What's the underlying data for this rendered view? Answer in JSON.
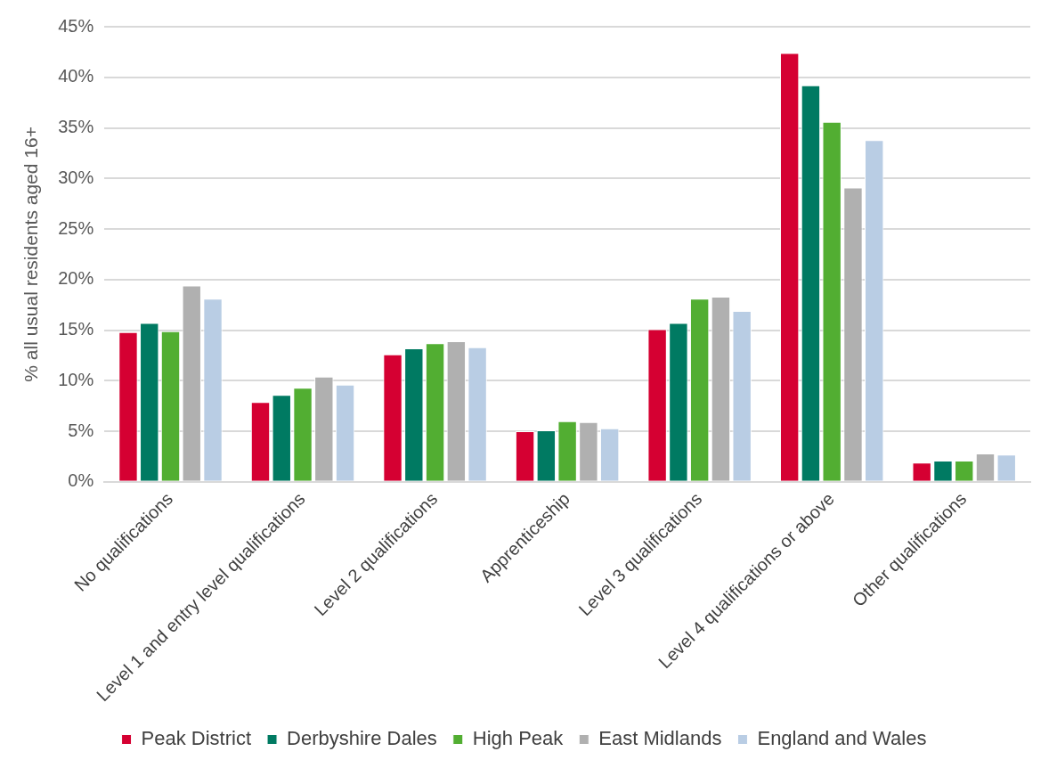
{
  "chart_data": {
    "type": "bar",
    "ylabel": "% all usual residents aged 16+",
    "categories": [
      "No qualifications",
      "Level 1 and entry level qualifications",
      "Level 2 qualifications",
      "Apprenticeship",
      "Level 3 qualifications",
      "Level 4 qualifications or above",
      "Other qualifications"
    ],
    "series": [
      {
        "name": "Peak District",
        "color": "#d50032",
        "values": [
          14.8,
          7.9,
          12.6,
          5.0,
          15.1,
          42.4,
          1.9
        ]
      },
      {
        "name": "Derbyshire Dales",
        "color": "#007a62",
        "values": [
          15.7,
          8.6,
          13.2,
          5.1,
          15.7,
          39.2,
          2.1
        ]
      },
      {
        "name": "High Peak",
        "color": "#52ae32",
        "values": [
          14.9,
          9.3,
          13.7,
          6.0,
          18.1,
          35.6,
          2.1
        ]
      },
      {
        "name": "East Midlands",
        "color": "#b0b0b0",
        "values": [
          19.4,
          10.4,
          13.9,
          5.9,
          18.3,
          29.1,
          2.8
        ]
      },
      {
        "name": "England and Wales",
        "color": "#b9cde4",
        "values": [
          18.1,
          9.6,
          13.3,
          5.3,
          16.9,
          33.8,
          2.7
        ]
      }
    ],
    "ylim": [
      0,
      45
    ],
    "yticks": [
      {
        "value": 0,
        "label": "0%"
      },
      {
        "value": 5,
        "label": "5%"
      },
      {
        "value": 10,
        "label": "10%"
      },
      {
        "value": 15,
        "label": "15%"
      },
      {
        "value": 20,
        "label": "20%"
      },
      {
        "value": 25,
        "label": "25%"
      },
      {
        "value": 30,
        "label": "30%"
      },
      {
        "value": 35,
        "label": "35%"
      },
      {
        "value": 40,
        "label": "40%"
      },
      {
        "value": 45,
        "label": "45%"
      }
    ],
    "grid": "y",
    "legend": "bottom"
  }
}
